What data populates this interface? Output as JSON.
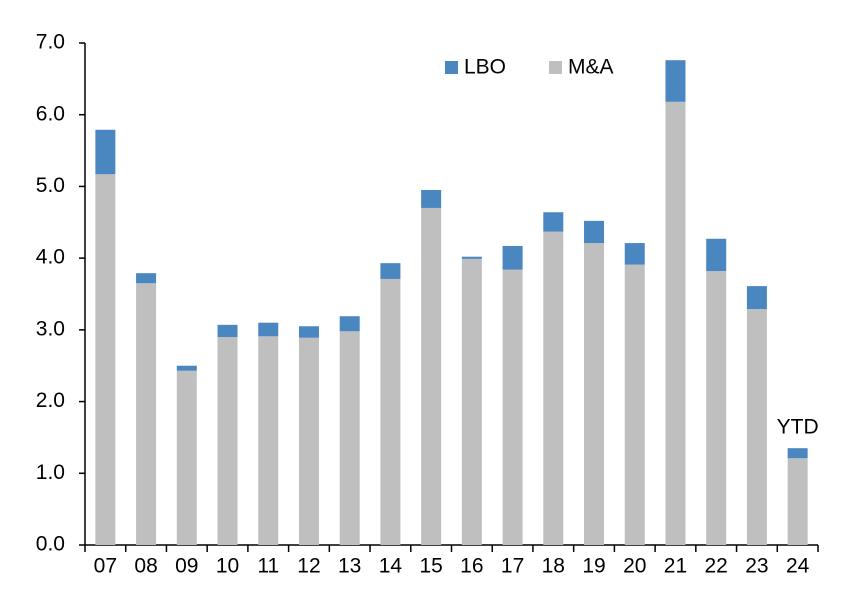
{
  "chart_data": {
    "type": "stacked_bar",
    "categories": [
      "07",
      "08",
      "09",
      "10",
      "11",
      "12",
      "13",
      "14",
      "15",
      "16",
      "17",
      "18",
      "19",
      "20",
      "21",
      "22",
      "23",
      "24"
    ],
    "series": [
      {
        "name": "M&A",
        "color": "#bfbfbf",
        "values": [
          5.17,
          3.65,
          2.43,
          2.9,
          2.91,
          2.89,
          2.98,
          3.71,
          4.7,
          3.99,
          3.84,
          4.37,
          4.21,
          3.91,
          6.18,
          3.82,
          3.29,
          1.21
        ]
      },
      {
        "name": "LBO",
        "color": "#4a86c0",
        "values": [
          0.62,
          0.14,
          0.07,
          0.17,
          0.19,
          0.16,
          0.21,
          0.22,
          0.25,
          0.03,
          0.33,
          0.27,
          0.31,
          0.3,
          0.58,
          0.45,
          0.32,
          0.14
        ]
      }
    ],
    "ylim": [
      0,
      7
    ],
    "yticks": [
      {
        "value": 0,
        "label": "0.0"
      },
      {
        "value": 1,
        "label": "1.0"
      },
      {
        "value": 2,
        "label": "2.0"
      },
      {
        "value": 3,
        "label": "3.0"
      },
      {
        "value": 4,
        "label": "4.0"
      },
      {
        "value": 5,
        "label": "5.0"
      },
      {
        "value": 6,
        "label": "6.0"
      },
      {
        "value": 7,
        "label": "7.0"
      }
    ],
    "annotation": "YTD",
    "legend": "top-right"
  }
}
